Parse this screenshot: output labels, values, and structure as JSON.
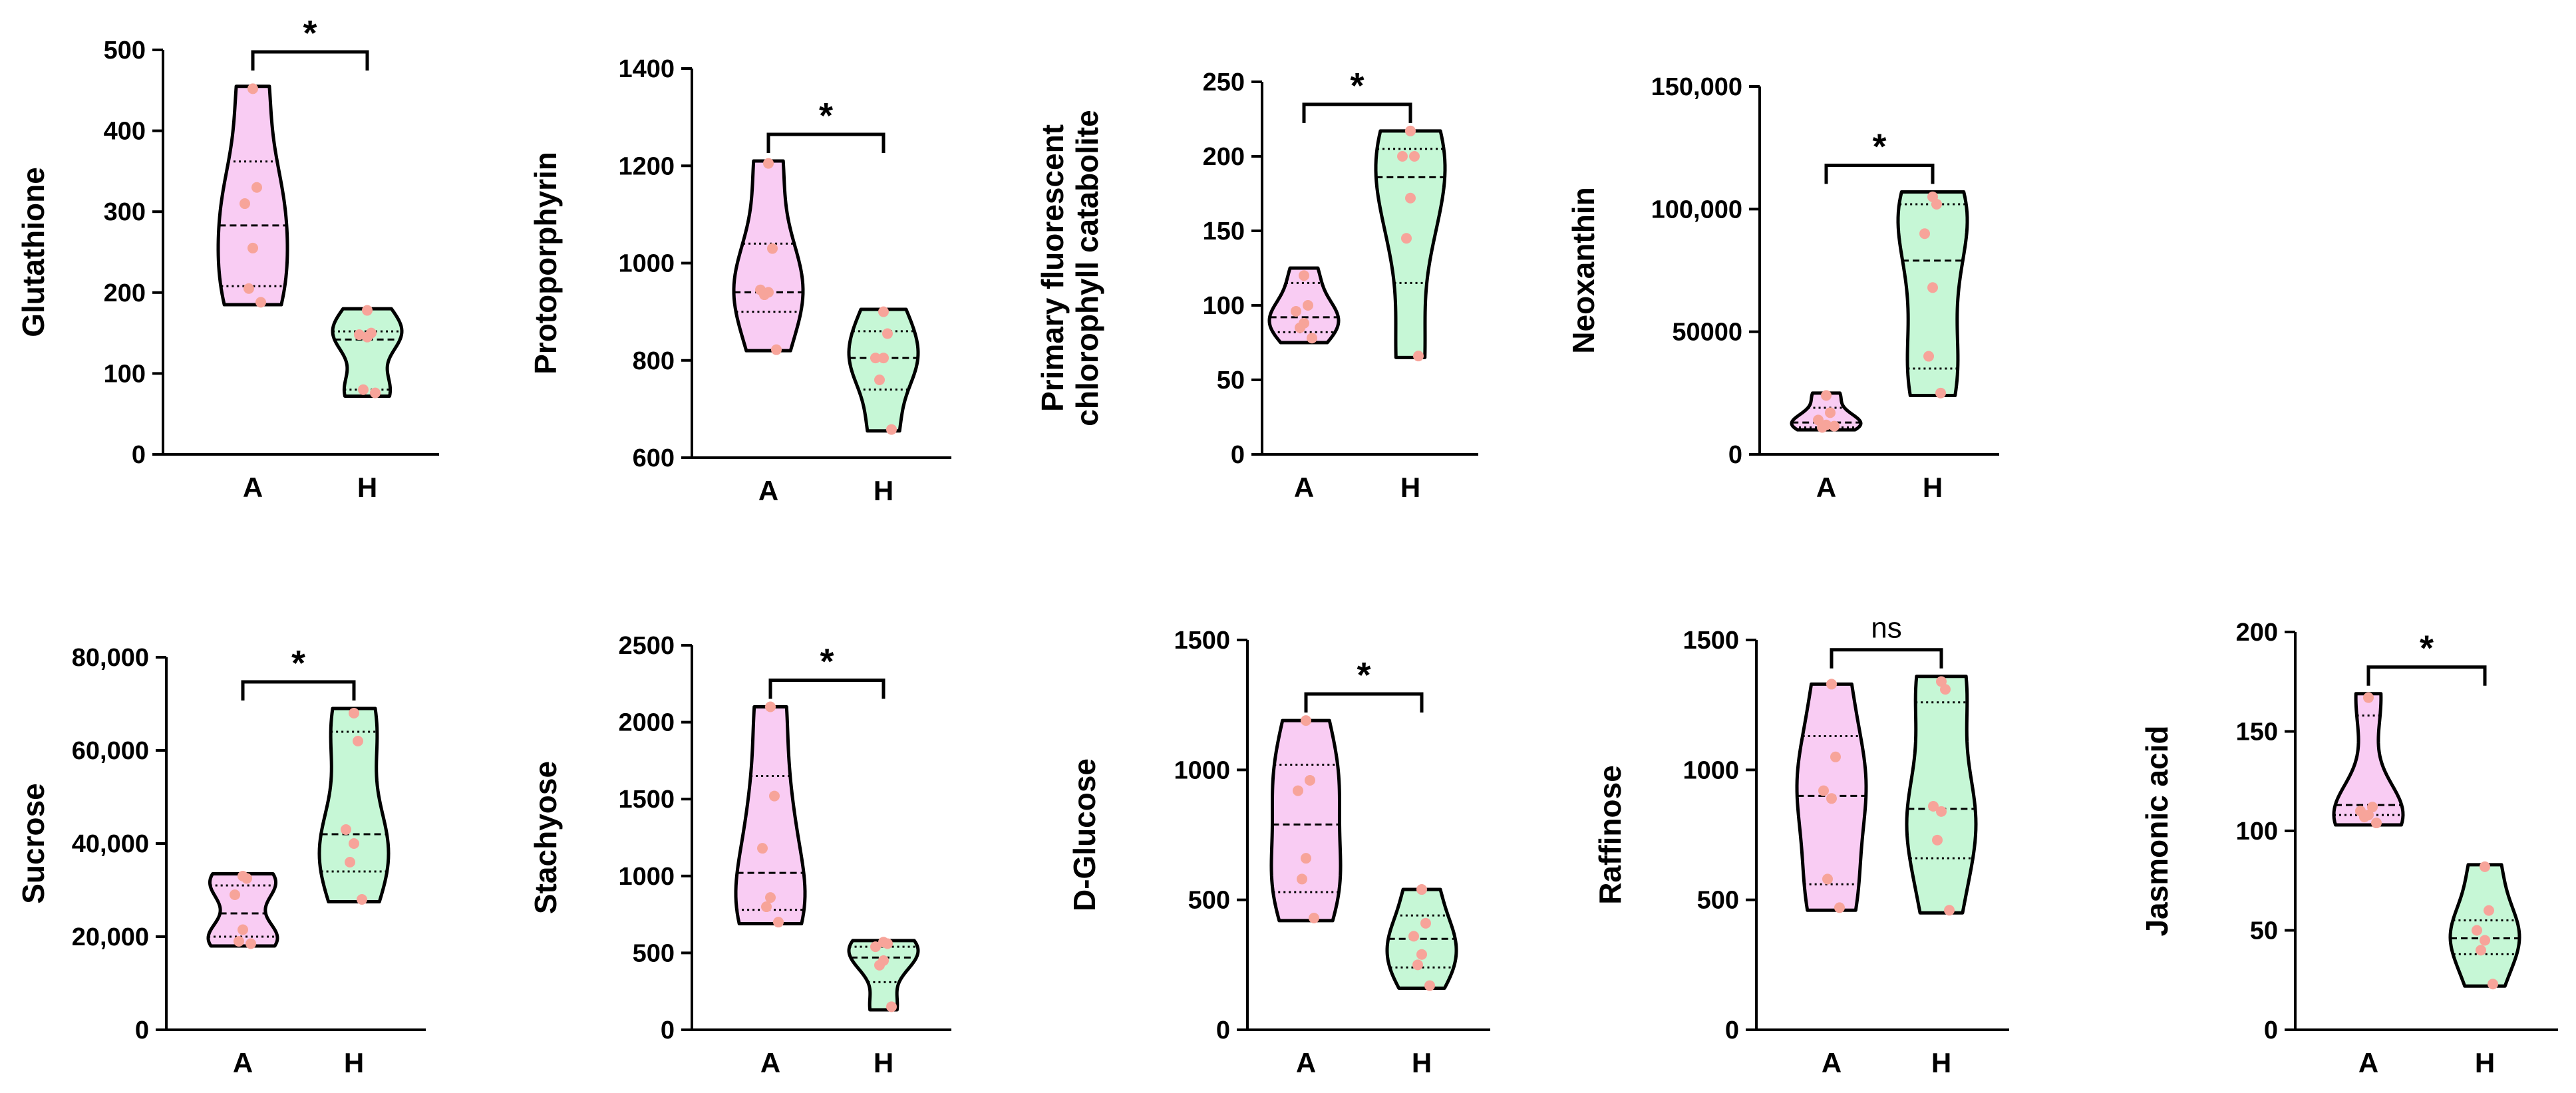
{
  "figure": {
    "colors": {
      "A": "#f9ccf3",
      "H": "#c6f7d6",
      "point": "#f7a49a",
      "line": "#000000"
    }
  },
  "chart_data": [
    {
      "type": "violin",
      "ylabel": "Glutathione",
      "ylim": [
        0,
        500
      ],
      "yticks": [
        "0",
        "100",
        "200",
        "300",
        "400",
        "500"
      ],
      "categories": [
        "A",
        "H"
      ],
      "series": [
        {
          "category": "A",
          "range": [
            185,
            455
          ],
          "median": 283,
          "q1": 208,
          "q3": 362,
          "points": [
            452,
            330,
            310,
            255,
            205,
            188
          ]
        },
        {
          "category": "H",
          "range": [
            72,
            180
          ],
          "median": 142,
          "q1": 80,
          "q3": 152,
          "points": [
            178,
            150,
            148,
            145,
            80,
            76
          ]
        }
      ],
      "significance": "*"
    },
    {
      "type": "violin",
      "ylabel": "Protoporphyrin",
      "ylim": [
        600,
        1400
      ],
      "yticks": [
        "600",
        "800",
        "1000",
        "1200",
        "1400"
      ],
      "categories": [
        "A",
        "H"
      ],
      "series": [
        {
          "category": "A",
          "range": [
            820,
            1210
          ],
          "median": 940,
          "q1": 900,
          "q3": 1040,
          "points": [
            1205,
            1030,
            945,
            940,
            935,
            822
          ]
        },
        {
          "category": "H",
          "range": [
            655,
            905
          ],
          "median": 805,
          "q1": 740,
          "q3": 860,
          "points": [
            900,
            855,
            805,
            805,
            760,
            658
          ]
        }
      ],
      "significance": "*"
    },
    {
      "type": "violin",
      "ylabel": [
        "Primary fluorescent",
        "chlorophyll catabolite"
      ],
      "ylim": [
        0,
        250
      ],
      "yticks": [
        "0",
        "50",
        "100",
        "150",
        "200",
        "250"
      ],
      "categories": [
        "A",
        "H"
      ],
      "series": [
        {
          "category": "A",
          "range": [
            75,
            125
          ],
          "median": 92,
          "q1": 82,
          "q3": 115,
          "points": [
            120,
            100,
            96,
            88,
            85,
            78
          ]
        },
        {
          "category": "H",
          "range": [
            65,
            217
          ],
          "median": 186,
          "q1": 115,
          "q3": 205,
          "points": [
            217,
            200,
            200,
            172,
            145,
            66
          ]
        }
      ],
      "significance": "*"
    },
    {
      "type": "violin",
      "ylabel": "Neoxanthin",
      "ylim": [
        0,
        150000
      ],
      "yticks": [
        "0",
        "50000",
        "100,000",
        "150,000"
      ],
      "categories": [
        "A",
        "H"
      ],
      "series": [
        {
          "category": "A",
          "range": [
            10000,
            25000
          ],
          "median": 13000,
          "q1": 11000,
          "q3": 19000,
          "points": [
            24000,
            17000,
            14000,
            12000,
            11000,
            11500
          ]
        },
        {
          "category": "H",
          "range": [
            24000,
            107000
          ],
          "median": 79000,
          "q1": 35000,
          "q3": 102000,
          "points": [
            105000,
            102000,
            90000,
            68000,
            40000,
            25000
          ]
        }
      ],
      "significance": "*"
    },
    {
      "type": "violin",
      "ylabel": "Sucrose",
      "ylim": [
        0,
        80000
      ],
      "yticks": [
        "0",
        "20,000",
        "40,000",
        "60,000",
        "80,000"
      ],
      "categories": [
        "A",
        "H"
      ],
      "series": [
        {
          "category": "A",
          "range": [
            18000,
            33500
          ],
          "median": 25000,
          "q1": 20000,
          "q3": 31000,
          "points": [
            33000,
            32500,
            29000,
            21500,
            19000,
            18500
          ]
        },
        {
          "category": "H",
          "range": [
            27500,
            69000
          ],
          "median": 42000,
          "q1": 34000,
          "q3": 64000,
          "points": [
            68000,
            62000,
            43000,
            40000,
            36000,
            28000
          ]
        }
      ],
      "significance": "*"
    },
    {
      "type": "violin",
      "ylabel": "Stachyose",
      "ylim": [
        0,
        2500
      ],
      "yticks": [
        "0",
        "500",
        "1000",
        "1500",
        "2000",
        "2500"
      ],
      "categories": [
        "A",
        "H"
      ],
      "series": [
        {
          "category": "A",
          "range": [
            690,
            2100
          ],
          "median": 1020,
          "q1": 780,
          "q3": 1650,
          "points": [
            2100,
            1520,
            1180,
            860,
            800,
            700
          ]
        },
        {
          "category": "H",
          "range": [
            130,
            580
          ],
          "median": 470,
          "q1": 310,
          "q3": 540,
          "points": [
            570,
            560,
            540,
            450,
            420,
            150
          ]
        }
      ],
      "significance": "*"
    },
    {
      "type": "violin",
      "ylabel": "D-Glucose",
      "ylim": [
        0,
        1500
      ],
      "yticks": [
        "0",
        "500",
        "1000",
        "1500"
      ],
      "categories": [
        "A",
        "H"
      ],
      "series": [
        {
          "category": "A",
          "range": [
            420,
            1190
          ],
          "median": 790,
          "q1": 530,
          "q3": 1020,
          "points": [
            1190,
            960,
            920,
            660,
            580,
            430
          ]
        },
        {
          "category": "H",
          "range": [
            160,
            540
          ],
          "median": 350,
          "q1": 240,
          "q3": 440,
          "points": [
            540,
            410,
            360,
            290,
            250,
            170
          ]
        }
      ],
      "significance": "*"
    },
    {
      "type": "violin",
      "ylabel": "Raffinose",
      "ylim": [
        0,
        1500
      ],
      "yticks": [
        "0",
        "500",
        "1000",
        "1500"
      ],
      "categories": [
        "A",
        "H"
      ],
      "series": [
        {
          "category": "A",
          "range": [
            460,
            1330
          ],
          "median": 900,
          "q1": 560,
          "q3": 1130,
          "points": [
            1330,
            1050,
            920,
            890,
            580,
            470
          ]
        },
        {
          "category": "H",
          "range": [
            450,
            1360
          ],
          "median": 850,
          "q1": 660,
          "q3": 1260,
          "points": [
            1340,
            1310,
            860,
            840,
            730,
            460
          ]
        }
      ],
      "significance": "ns"
    },
    {
      "type": "violin",
      "ylabel": "Jasmonic acid",
      "ylim": [
        0,
        200
      ],
      "yticks": [
        "0",
        "50",
        "100",
        "150",
        "200"
      ],
      "categories": [
        "A",
        "H"
      ],
      "series": [
        {
          "category": "A",
          "range": [
            103,
            169
          ],
          "median": 113,
          "q1": 108,
          "q3": 158,
          "points": [
            167,
            112,
            110,
            108,
            107,
            104
          ]
        },
        {
          "category": "H",
          "range": [
            22,
            83
          ],
          "median": 46,
          "q1": 38,
          "q3": 55,
          "points": [
            82,
            60,
            50,
            45,
            40,
            23
          ]
        }
      ],
      "significance": "*"
    }
  ]
}
